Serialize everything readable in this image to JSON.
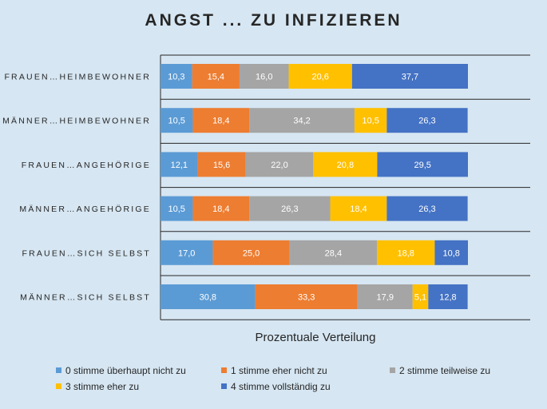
{
  "chart_data": {
    "type": "bar",
    "orientation": "horizontal",
    "stacked": true,
    "title": "ANGST ... ZU INFIZIEREN",
    "xlabel": "Prozentuale Verteilung",
    "ylabel": "",
    "xlim": [
      0,
      100
    ],
    "grid": false,
    "legend_position": "bottom",
    "categories": [
      "FRAUEN…HEIMBEWOHNER",
      "MÄNNER…HEIMBEWOHNER",
      "FRAUEN…ANGEHÖRIGE",
      "MÄNNER…ANGEHÖRIGE",
      "FRAUEN…SICH SELBST",
      "MÄNNER…SICH SELBST"
    ],
    "series": [
      {
        "name": "0 stimme überhaupt nicht zu",
        "color": "#5b9bd5",
        "values": [
          10.3,
          10.5,
          12.1,
          10.5,
          17.0,
          30.8
        ],
        "labels": [
          "10,3",
          "10,5",
          "12,1",
          "10,5",
          "17,0",
          "30,8"
        ]
      },
      {
        "name": "1 stimme eher nicht zu",
        "color": "#ed7d31",
        "values": [
          15.4,
          18.4,
          15.6,
          18.4,
          25.0,
          33.3
        ],
        "labels": [
          "15,4",
          "18,4",
          "15,6",
          "18,4",
          "25,0",
          "33,3"
        ]
      },
      {
        "name": "2 stimme teilweise zu",
        "color": "#a5a5a5",
        "values": [
          16.0,
          34.2,
          22.0,
          26.3,
          28.4,
          17.9
        ],
        "labels": [
          "16,0",
          "34,2",
          "22,0",
          "26,3",
          "28,4",
          "17,9"
        ]
      },
      {
        "name": "3 stimme eher zu",
        "color": "#ffc000",
        "values": [
          20.6,
          10.5,
          20.8,
          18.4,
          18.8,
          5.1
        ],
        "labels": [
          "20,6",
          "10,5",
          "20,8",
          "18,4",
          "18,8",
          "5,1"
        ]
      },
      {
        "name": "4 stimme vollständig zu",
        "color": "#4472c4",
        "values": [
          37.7,
          26.3,
          29.5,
          26.3,
          10.8,
          12.8
        ],
        "labels": [
          "37,7",
          "26,3",
          "29,5",
          "26,3",
          "10,8",
          "12,8"
        ]
      }
    ]
  }
}
